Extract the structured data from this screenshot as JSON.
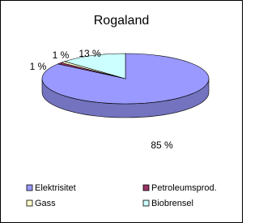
{
  "chart_data": {
    "type": "pie",
    "title": "Rogaland",
    "categories": [
      "Elektrisitet",
      "Petroleumsprod.",
      "Gass",
      "Biobrensel"
    ],
    "values": [
      85,
      1,
      1,
      13
    ],
    "value_labels": [
      "85 %",
      "1 %",
      "1 %",
      "13 %"
    ],
    "colors": [
      "#9999ff",
      "#993366",
      "#ffffcc",
      "#ccffff"
    ],
    "legend": "bottom"
  }
}
